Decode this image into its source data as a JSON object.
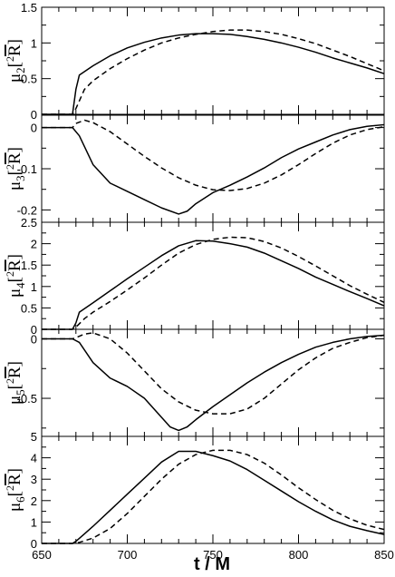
{
  "chart_data": [
    {
      "type": "line",
      "ylabel": {
        "mu": "μ",
        "sub": "2",
        "sup": "2",
        "R": "R"
      },
      "ylim": [
        0,
        1.5
      ],
      "yticks": [
        0,
        0.5,
        1,
        1.5
      ],
      "yticklabels": [
        "0",
        "0.5",
        "1",
        "1.5"
      ],
      "xlim": [
        650,
        850
      ],
      "series": [
        {
          "style": "solid",
          "x": [
            650,
            668,
            670,
            672,
            680,
            690,
            700,
            710,
            720,
            730,
            740,
            750,
            760,
            770,
            780,
            790,
            800,
            810,
            820,
            830,
            840,
            850
          ],
          "y": [
            0,
            0,
            0.35,
            0.55,
            0.68,
            0.82,
            0.93,
            1.01,
            1.07,
            1.11,
            1.13,
            1.13,
            1.12,
            1.09,
            1.05,
            1.0,
            0.94,
            0.87,
            0.79,
            0.72,
            0.65,
            0.57
          ]
        },
        {
          "style": "dashed",
          "x": [
            650,
            668,
            670,
            675,
            680,
            690,
            700,
            710,
            720,
            730,
            740,
            750,
            760,
            770,
            780,
            790,
            800,
            810,
            820,
            830,
            840,
            850
          ],
          "y": [
            0,
            0,
            0.08,
            0.35,
            0.47,
            0.64,
            0.78,
            0.9,
            1.0,
            1.07,
            1.12,
            1.16,
            1.18,
            1.18,
            1.16,
            1.12,
            1.06,
            0.99,
            0.9,
            0.81,
            0.71,
            0.61
          ]
        }
      ]
    },
    {
      "type": "line",
      "ylabel": {
        "mu": "μ",
        "sub": "3",
        "sup": "2",
        "R": "R"
      },
      "ylim": [
        -0.23,
        0.03
      ],
      "yticks": [
        0,
        -0.1,
        -0.2
      ],
      "yticklabels": [
        "0",
        "-0.1",
        "-0.2"
      ],
      "xlim": [
        650,
        850
      ],
      "series": [
        {
          "style": "solid",
          "x": [
            650,
            668,
            672,
            680,
            690,
            700,
            710,
            720,
            730,
            735,
            740,
            750,
            760,
            770,
            780,
            790,
            800,
            810,
            820,
            830,
            840,
            850
          ],
          "y": [
            0,
            0,
            -0.02,
            -0.09,
            -0.135,
            -0.155,
            -0.175,
            -0.195,
            -0.21,
            -0.203,
            -0.185,
            -0.158,
            -0.14,
            -0.12,
            -0.098,
            -0.073,
            -0.052,
            -0.035,
            -0.018,
            -0.005,
            0.003,
            0.007
          ]
        },
        {
          "style": "dashed",
          "x": [
            650,
            668,
            670,
            675,
            680,
            690,
            700,
            710,
            720,
            730,
            740,
            750,
            760,
            770,
            780,
            790,
            800,
            810,
            820,
            830,
            840,
            850
          ],
          "y": [
            0,
            0,
            0.01,
            0.018,
            0.012,
            -0.01,
            -0.04,
            -0.07,
            -0.098,
            -0.122,
            -0.14,
            -0.151,
            -0.153,
            -0.148,
            -0.135,
            -0.115,
            -0.09,
            -0.063,
            -0.038,
            -0.018,
            -0.005,
            0.002
          ]
        }
      ]
    },
    {
      "type": "line",
      "ylabel": {
        "mu": "μ",
        "sub": "4",
        "sup": "2",
        "R": "R"
      },
      "ylim": [
        0,
        2.5
      ],
      "yticks": [
        0,
        0.5,
        1,
        1.5,
        2,
        2.5
      ],
      "yticklabels": [
        "0",
        "0.5",
        "1",
        "1.5",
        "2",
        "2.5"
      ],
      "xlim": [
        650,
        850
      ],
      "series": [
        {
          "style": "solid",
          "x": [
            650,
            668,
            670,
            672,
            680,
            690,
            700,
            710,
            720,
            730,
            740,
            750,
            760,
            770,
            780,
            790,
            800,
            810,
            820,
            830,
            840,
            850
          ],
          "y": [
            0,
            0,
            0.15,
            0.4,
            0.62,
            0.9,
            1.18,
            1.45,
            1.72,
            1.95,
            2.07,
            2.06,
            2.0,
            1.92,
            1.78,
            1.6,
            1.42,
            1.22,
            1.05,
            0.88,
            0.72,
            0.55
          ]
        },
        {
          "style": "dashed",
          "x": [
            650,
            668,
            670,
            675,
            680,
            690,
            700,
            710,
            720,
            730,
            740,
            750,
            760,
            770,
            780,
            790,
            800,
            810,
            820,
            830,
            840,
            850
          ],
          "y": [
            0,
            0,
            0.05,
            0.25,
            0.4,
            0.65,
            0.92,
            1.2,
            1.5,
            1.78,
            1.98,
            2.1,
            2.15,
            2.14,
            2.05,
            1.9,
            1.7,
            1.48,
            1.25,
            1.02,
            0.82,
            0.63
          ]
        }
      ]
    },
    {
      "type": "line",
      "ylabel": {
        "mu": "μ",
        "sub": "5",
        "sup": "2",
        "R": "R"
      },
      "ylim": [
        -0.82,
        0.08
      ],
      "yticks": [
        0,
        -0.5
      ],
      "yticklabels": [
        "0",
        "-0.5"
      ],
      "xlim": [
        650,
        850
      ],
      "series": [
        {
          "style": "solid",
          "x": [
            650,
            668,
            672,
            680,
            690,
            700,
            710,
            720,
            725,
            730,
            735,
            740,
            750,
            760,
            770,
            780,
            790,
            800,
            810,
            820,
            830,
            840,
            850
          ],
          "y": [
            0,
            0,
            -0.03,
            -0.2,
            -0.33,
            -0.4,
            -0.5,
            -0.66,
            -0.74,
            -0.77,
            -0.74,
            -0.68,
            -0.57,
            -0.47,
            -0.37,
            -0.28,
            -0.2,
            -0.13,
            -0.07,
            -0.03,
            0.0,
            0.02,
            0.03
          ]
        },
        {
          "style": "dashed",
          "x": [
            650,
            668,
            670,
            675,
            680,
            690,
            700,
            710,
            720,
            730,
            740,
            750,
            760,
            770,
            780,
            790,
            800,
            810,
            820,
            830,
            840,
            850
          ],
          "y": [
            0,
            0,
            0.01,
            0.04,
            0.05,
            0.0,
            -0.12,
            -0.27,
            -0.42,
            -0.53,
            -0.6,
            -0.63,
            -0.63,
            -0.59,
            -0.5,
            -0.38,
            -0.26,
            -0.16,
            -0.08,
            -0.03,
            0.01,
            0.03
          ]
        }
      ]
    },
    {
      "type": "line",
      "ylabel": {
        "mu": "μ",
        "sub": "6",
        "sup": "2",
        "R": "R"
      },
      "ylim": [
        0,
        5
      ],
      "yticks": [
        0,
        1,
        2,
        3,
        4,
        5
      ],
      "yticklabels": [
        "0",
        "1",
        "2",
        "3",
        "4",
        "5"
      ],
      "xlim": [
        650,
        850
      ],
      "xticks": [
        650,
        700,
        750,
        800,
        850
      ],
      "xticklabels": [
        "650",
        "700",
        "750",
        "800",
        "850"
      ],
      "xlabel": "t / M",
      "series": [
        {
          "style": "solid",
          "x": [
            650,
            668,
            670,
            675,
            680,
            690,
            700,
            710,
            720,
            730,
            740,
            750,
            760,
            770,
            780,
            790,
            800,
            810,
            820,
            830,
            840,
            850
          ],
          "y": [
            0,
            0,
            0.1,
            0.45,
            0.8,
            1.55,
            2.3,
            3.05,
            3.8,
            4.3,
            4.3,
            4.1,
            3.85,
            3.45,
            2.95,
            2.45,
            1.95,
            1.5,
            1.1,
            0.8,
            0.6,
            0.42
          ]
        },
        {
          "style": "dashed",
          "x": [
            650,
            668,
            672,
            680,
            690,
            700,
            710,
            720,
            730,
            740,
            750,
            760,
            770,
            780,
            790,
            800,
            810,
            820,
            830,
            840,
            850
          ],
          "y": [
            0,
            0,
            0.05,
            0.25,
            0.7,
            1.4,
            2.2,
            3.0,
            3.7,
            4.15,
            4.35,
            4.35,
            4.15,
            3.75,
            3.2,
            2.6,
            2.05,
            1.55,
            1.15,
            0.85,
            0.65
          ]
        }
      ]
    }
  ]
}
